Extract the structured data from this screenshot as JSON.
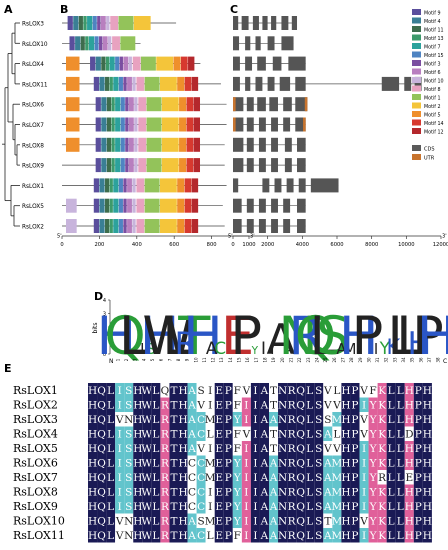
{
  "panels": {
    "a": "A",
    "b": "B",
    "c": "C",
    "d": "D",
    "e": "E"
  },
  "genes": [
    "RsLOX3",
    "RsLOX10",
    "RsLOX4",
    "RsLOX11",
    "RsLOX6",
    "RsLOX7",
    "RsLOX8",
    "RsLOX9",
    "RsLOX1",
    "RsLOX5",
    "RsLOX2"
  ],
  "motif_legend": [
    {
      "label": "Motif 9",
      "color": "#5a4e9c"
    },
    {
      "label": "Motif 4",
      "color": "#3a7f95"
    },
    {
      "label": "Motif 11",
      "color": "#3e6d4d"
    },
    {
      "label": "Motif 13",
      "color": "#3d9a6b"
    },
    {
      "label": "Motif 7",
      "color": "#2ca29c"
    },
    {
      "label": "Motif 15",
      "color": "#4f84c2"
    },
    {
      "label": "Motif 3",
      "color": "#7b4ea1"
    },
    {
      "label": "Motif 6",
      "color": "#b87fbf"
    },
    {
      "label": "Motif 10",
      "color": "#c8b4dc"
    },
    {
      "label": "Motif 8",
      "color": "#e8a2c0"
    },
    {
      "label": "Motif 1",
      "color": "#93c35a"
    },
    {
      "label": "Motif 2",
      "color": "#f4c53a"
    },
    {
      "label": "Motif 5",
      "color": "#ef8f2c"
    },
    {
      "label": "Motif 14",
      "color": "#d7392f"
    },
    {
      "label": "Motif 12",
      "color": "#b4282c"
    }
  ],
  "structure_legend": [
    {
      "label": "CDS",
      "color": "#5a5a5a"
    },
    {
      "label": "UTR",
      "color": "#c8742e"
    }
  ],
  "axis_b": {
    "ticks": [
      "0",
      "200",
      "400",
      "600",
      "800",
      "1000"
    ],
    "start": "5'",
    "end": "3'"
  },
  "axis_c": {
    "ticks": [
      "0",
      "2000",
      "4000",
      "6000",
      "8000",
      "10000",
      "12000"
    ],
    "start": "5'",
    "end": "3'"
  },
  "logo": {
    "ylabel": "bits",
    "yticks": [
      "0",
      "1",
      "2",
      "3",
      "4"
    ],
    "n_label": "N",
    "c_label": "C",
    "positions": [
      "1",
      "2",
      "3",
      "4",
      "5",
      "6",
      "7",
      "8",
      "9",
      "10",
      "11",
      "12",
      "13",
      "14",
      "15",
      "16",
      "17",
      "18",
      "19",
      "20",
      "21",
      "22",
      "23",
      "24",
      "25",
      "26",
      "27",
      "28",
      "29",
      "30",
      "31",
      "32",
      "33",
      "34",
      "35",
      "36",
      "37",
      "38"
    ]
  },
  "alignment": {
    "names": [
      "RsLOX1",
      "RsLOX2",
      "RsLOX3",
      "RsLOX4",
      "RsLOX5",
      "RsLOX6",
      "RsLOX7",
      "RsLOX8",
      "RsLOX9",
      "RsLOX10",
      "RsLOX11"
    ],
    "rows": [
      "HQLISHWLQTHASIEPFVIATNRQLSVLHPVFKLLHPH",
      "HQLISHWLRTHAVIEPFIIATNRQLSVVHPIYKLLHPH",
      "HQLVNHWLRTHACMEPYIIAANRQLSSMHPVYKLLHPH",
      "HQLISHWLRTHACLEPFVIATNRQLSALHPVYKLLDPH",
      "HQLISHWLRTHAVIEPFIIATNRQLSVVHPIYKLLHPH",
      "HQLISHWLRTHCCMEPYIIAANRQLSAMHPIYKLLHPH",
      "HQLISHWLRTHCCMEPYIIAANRQLSAMHPIYRLLEPH",
      "HQLISHWLRTHCCIEPYIIAANRQLSAMHPIYKLLHPH",
      "HQLISHWLRTHCCIEPYIIAANRQLSAMHPIYKLLHPH",
      "HQLVNHWLRTHASMEPYIIAANRQLSTMHPVYKLLHPH",
      "HQLVNHWLRTHACLEPFIIAANRQLSAMHPIYKLLHPH"
    ]
  }
}
